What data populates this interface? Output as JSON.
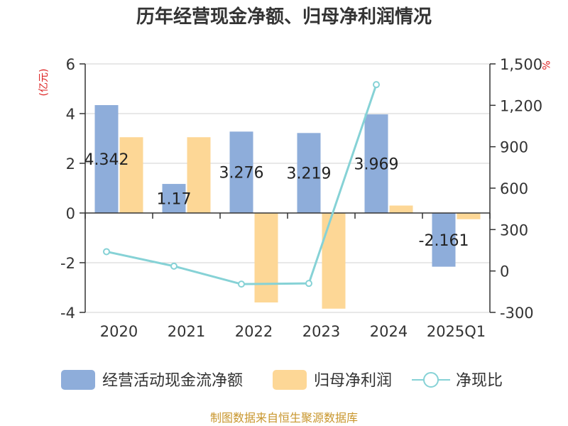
{
  "chart_data": {
    "type": "bar",
    "title": "历年经营现金净额、归母净利润情况",
    "categories": [
      "2020",
      "2021",
      "2022",
      "2023",
      "2024",
      "2025Q1"
    ],
    "y_left": {
      "unit": "(亿元)",
      "ticks": [
        "6",
        "4",
        "2",
        "0",
        "-2",
        "-4"
      ],
      "range": [
        -4,
        6
      ]
    },
    "y_right": {
      "unit": "%",
      "ticks": [
        "1,500",
        "1,200",
        "900",
        "600",
        "300",
        "0",
        "-300"
      ],
      "range": [
        -300,
        1500
      ]
    },
    "series": [
      {
        "name": "经营活动现金流净额",
        "type": "bar",
        "axis": "left",
        "color": "#8eadda",
        "values": [
          4.342,
          1.17,
          3.276,
          3.219,
          3.969,
          -2.161
        ],
        "labels": [
          "4.342",
          "1.17",
          "3.276",
          "3.219",
          "3.969",
          "-2.161"
        ]
      },
      {
        "name": "归母净利润",
        "type": "bar",
        "axis": "left",
        "color": "#fdd796",
        "values": [
          3.05,
          3.05,
          -3.6,
          -3.85,
          0.3,
          -0.25
        ]
      },
      {
        "name": "净现比",
        "type": "line",
        "axis": "right",
        "color": "#86d2d6",
        "values": [
          140,
          35,
          -95,
          -90,
          1350,
          null
        ]
      }
    ],
    "source": "制图数据来自恒生聚源数据库",
    "unit_color": "#dd2222",
    "source_color": "#c8962d"
  }
}
